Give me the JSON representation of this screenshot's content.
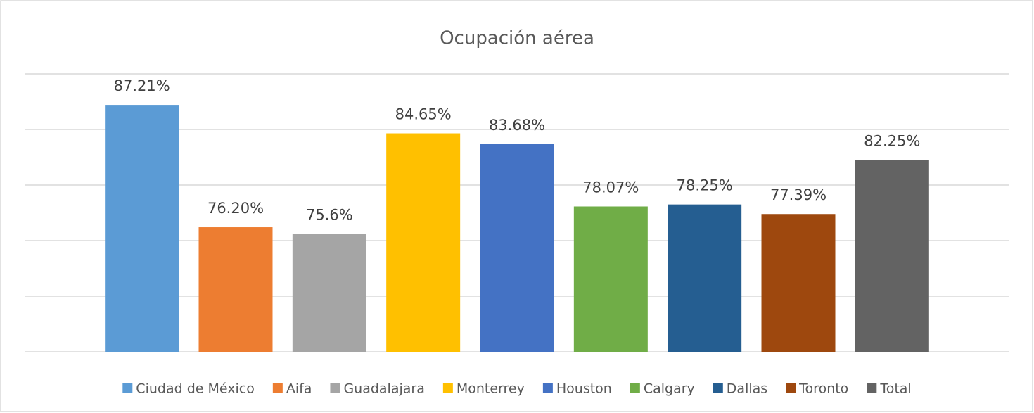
{
  "chart_data": {
    "type": "bar",
    "title": "Ocupación aérea",
    "categories": [
      "Ciudad de México",
      "Aifa",
      "Guadalajara",
      "Monterrey",
      "Houston",
      "Calgary",
      "Dallas",
      "Toronto",
      "Total"
    ],
    "values": [
      87.21,
      76.2,
      75.6,
      84.65,
      83.68,
      78.07,
      78.25,
      77.39,
      82.25
    ],
    "value_labels": [
      "87.21%",
      "76.20%",
      "75.6%",
      "84.65%",
      "83.68%",
      "78.07%",
      "78.25%",
      "77.39%",
      "82.25%"
    ],
    "colors": [
      "#5b9bd5",
      "#ed7d31",
      "#a5a5a5",
      "#ffc000",
      "#4472c4",
      "#70ad47",
      "#255e91",
      "#9e480e",
      "#636363"
    ],
    "ylim": [
      65,
      90
    ],
    "yticks": [
      65,
      70,
      75,
      80,
      85,
      90
    ],
    "grid": true,
    "legend": "bottom"
  }
}
